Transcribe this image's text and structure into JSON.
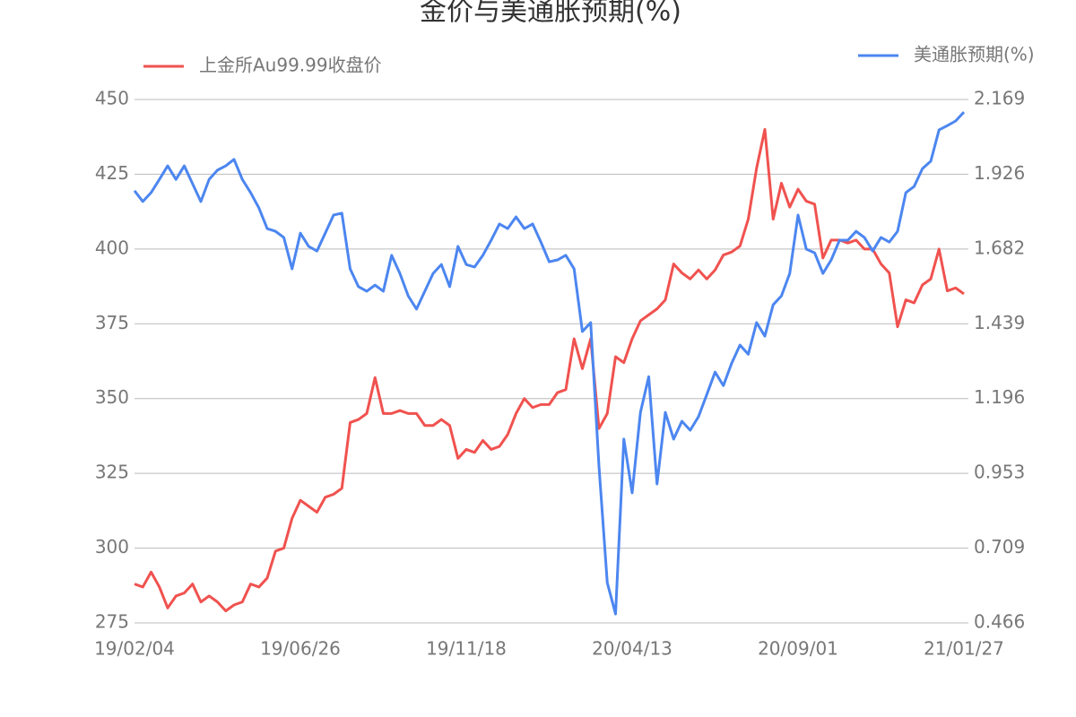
{
  "chart_data": {
    "type": "line",
    "title": "金价与美通胀预期(%)",
    "categories": [
      "19/02/04",
      null,
      null,
      null,
      null,
      null,
      null,
      null,
      null,
      null,
      null,
      null,
      null,
      null,
      null,
      null,
      null,
      null,
      null,
      null,
      "19/06/26",
      null,
      null,
      null,
      null,
      null,
      null,
      null,
      null,
      null,
      null,
      null,
      null,
      null,
      null,
      null,
      null,
      null,
      null,
      null,
      "19/11/18",
      null,
      null,
      null,
      null,
      null,
      null,
      null,
      null,
      null,
      null,
      null,
      null,
      null,
      null,
      null,
      null,
      null,
      null,
      null,
      "20/04/13",
      null,
      null,
      null,
      null,
      null,
      null,
      null,
      null,
      null,
      null,
      null,
      null,
      null,
      null,
      null,
      null,
      null,
      null,
      null,
      "20/09/01",
      null,
      null,
      null,
      null,
      null,
      null,
      null,
      null,
      null,
      null,
      null,
      null,
      null,
      null,
      null,
      null,
      null,
      null,
      null,
      "21/01/27"
    ],
    "series": [
      {
        "name": "上金所Au99.99收盘价",
        "color": "#f0524f",
        "axis": "y",
        "values": [
          288,
          287,
          292,
          287,
          280,
          284,
          285,
          288,
          282,
          284,
          282,
          279,
          281,
          282,
          288,
          287,
          290,
          299,
          300,
          310,
          316,
          314,
          312,
          317,
          318,
          320,
          342,
          343,
          345,
          357,
          345,
          345,
          346,
          345,
          345,
          341,
          341,
          343,
          341,
          330,
          333,
          332,
          336,
          333,
          334,
          338,
          345,
          350,
          347,
          348,
          348,
          352,
          353,
          370,
          360,
          370,
          340,
          345,
          364,
          362,
          370,
          376,
          378,
          380,
          383,
          395,
          392,
          390,
          393,
          390,
          393,
          398,
          399,
          401,
          410,
          427,
          440,
          410,
          422,
          414,
          420,
          416,
          415,
          397,
          403,
          403,
          402,
          403,
          400,
          400,
          395,
          392,
          374,
          383,
          382,
          388,
          390,
          400,
          386,
          387,
          385
        ]
      },
      {
        "name": "美通胀预期(%)",
        "color": "#4c86f0",
        "axis": "y2",
        "values": [
          1.872,
          1.837,
          1.866,
          1.909,
          1.953,
          1.909,
          1.953,
          1.895,
          1.837,
          1.909,
          1.939,
          1.953,
          1.974,
          1.909,
          1.866,
          1.816,
          1.749,
          1.74,
          1.72,
          1.618,
          1.734,
          1.691,
          1.676,
          1.734,
          1.793,
          1.799,
          1.618,
          1.56,
          1.545,
          1.565,
          1.545,
          1.662,
          1.603,
          1.53,
          1.487,
          1.545,
          1.603,
          1.632,
          1.56,
          1.691,
          1.632,
          1.624,
          1.662,
          1.711,
          1.764,
          1.749,
          1.787,
          1.749,
          1.764,
          1.705,
          1.641,
          1.647,
          1.662,
          1.618,
          1.414,
          1.443,
          0.976,
          0.597,
          0.495,
          1.064,
          0.889,
          1.151,
          1.267,
          0.918,
          1.151,
          1.064,
          1.122,
          1.093,
          1.137,
          1.209,
          1.282,
          1.238,
          1.311,
          1.37,
          1.34,
          1.443,
          1.399,
          1.501,
          1.53,
          1.603,
          1.793,
          1.682,
          1.67,
          1.603,
          1.647,
          1.711,
          1.711,
          1.74,
          1.72,
          1.676,
          1.72,
          1.705,
          1.74,
          1.866,
          1.886,
          1.944,
          1.968,
          2.07,
          2.084,
          2.099,
          2.128
        ]
      }
    ],
    "ylim": [
      275,
      450
    ],
    "yticks": [
      275,
      300,
      325,
      350,
      375,
      400,
      425,
      450
    ],
    "y2lim": [
      0.466,
      2.169
    ],
    "y2ticks": [
      0.466,
      0.709,
      0.953,
      1.196,
      1.439,
      1.682,
      1.926,
      2.169
    ],
    "grid": true
  }
}
